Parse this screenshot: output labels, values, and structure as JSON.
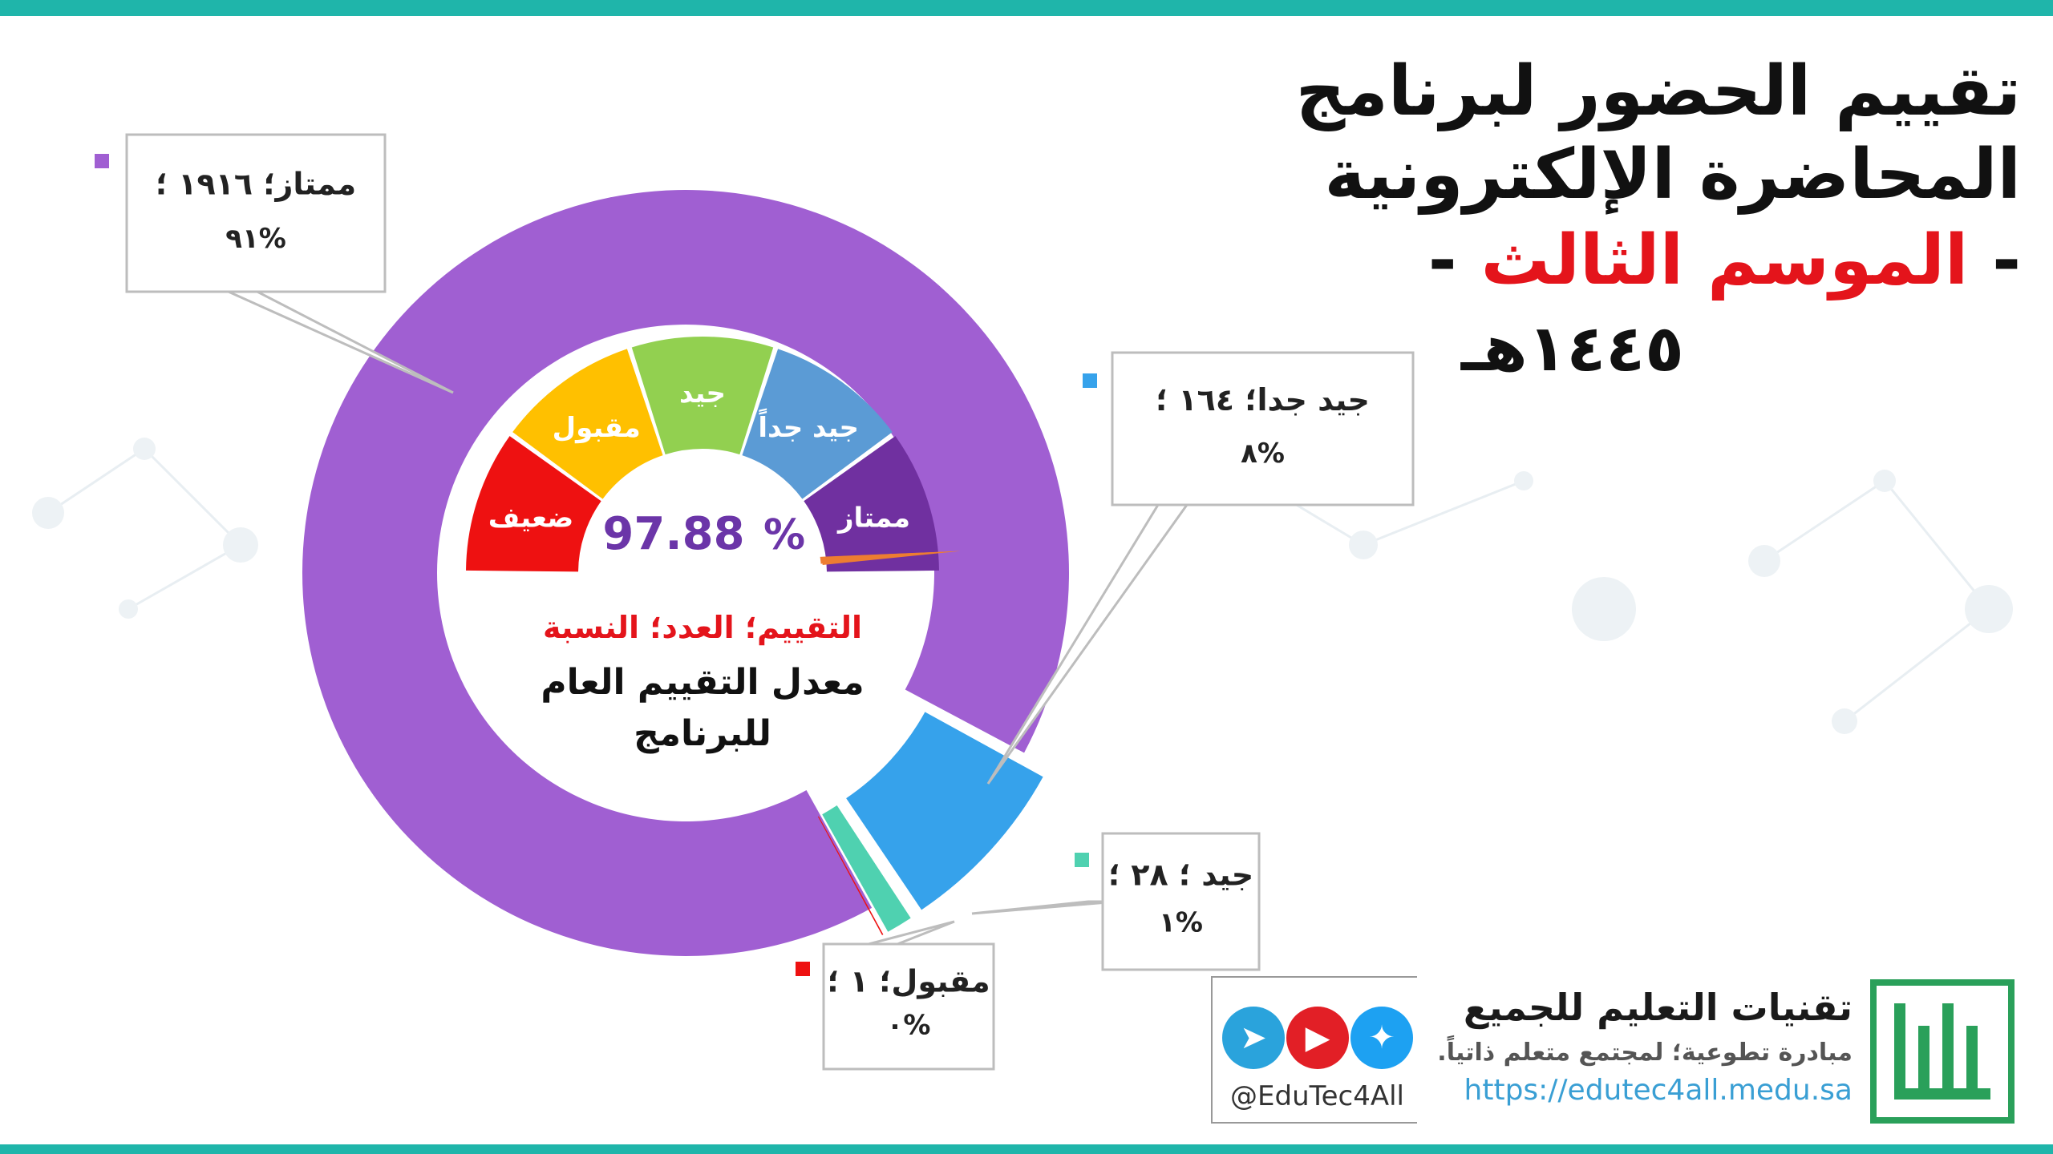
{
  "title": {
    "line1": "تقييم الحضور لبرنامج",
    "line2": "المحاضرة الإلكترونية",
    "line3_dash_left": "- ",
    "line3_season": "الموسم الثالث",
    "line3_dash_right": " -",
    "line4_year": "١٤٤٥هـ"
  },
  "gauge": {
    "value_text": "97.88",
    "percent_sign": "%",
    "segments": [
      {
        "label": "ضعيف",
        "color": "#ee1111"
      },
      {
        "label": "مقبول",
        "color": "#ffc000"
      },
      {
        "label": "جيد",
        "color": "#92d050"
      },
      {
        "label": "جيد جداً",
        "color": "#5b9bd5"
      },
      {
        "label": "ممتاز",
        "color": "#7030a0"
      }
    ],
    "needle_color": "#ed7d31",
    "value_fraction": 0.9788
  },
  "center": {
    "legend_caption": "التقييم؛ العدد؛ النسبة",
    "caption_line1": "معدل التقييم العام",
    "caption_line2": "للبرنامج"
  },
  "chart_data": {
    "type": "pie",
    "variant": "doughnut",
    "categories": [
      "ممتاز",
      "جيد جداً",
      "جيد",
      "مقبول"
    ],
    "values": [
      1916,
      164,
      28,
      1
    ],
    "percent_labels": [
      "%٩١",
      "%٨",
      "%١",
      "%٠"
    ],
    "colors": [
      "#a05fd2",
      "#36a2eb",
      "#4fd1b0",
      "#ee1111"
    ],
    "callouts": [
      {
        "line1": "ممتاز؛ ١٩١٦ ؛",
        "line2": "%٩١"
      },
      {
        "line1": "جيد جدا؛ ١٦٤ ؛",
        "line2": "%٨"
      },
      {
        "line1": "جيد ؛ ٢٨ ؛",
        "line2": "%١"
      },
      {
        "line1": "مقبول؛ ١ ؛",
        "line2": "%٠"
      }
    ]
  },
  "footer": {
    "brand_name": "تقنيات التعليم للجميع",
    "brand_tagline": "مبادرة تطوعية؛ لمجتمع متعلم ذاتياً.",
    "url": "https://edutec4all.medu.sa",
    "handle": "@EduTec4All",
    "icons": [
      "telegram-icon",
      "youtube-icon",
      "twitter-icon"
    ],
    "icon_colors": [
      "#2aa3dc",
      "#e21f26",
      "#1da1f2"
    ]
  }
}
